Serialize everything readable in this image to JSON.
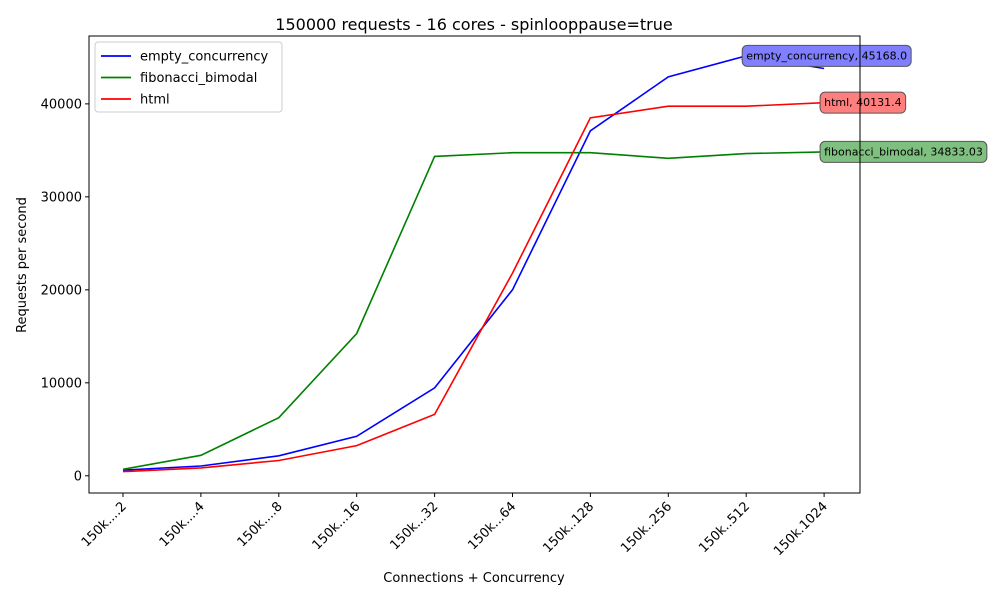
{
  "chart_data": {
    "type": "line",
    "title": "150000 requests - 16 cores - spinlooppause=true",
    "xlabel": "Connections + Concurrency",
    "ylabel": "Requests per second",
    "categories": [
      "150k....2",
      "150k....4",
      "150k....8",
      "150k...16",
      "150k...32",
      "150k...64",
      "150k..128",
      "150k..256",
      "150k..512",
      "150k.1024"
    ],
    "ylim": [
      -1850,
      47300
    ],
    "yticks": [
      0,
      10000,
      20000,
      30000,
      40000
    ],
    "grid": false,
    "legend_position": "top-left",
    "series": [
      {
        "name": "empty_concurrency",
        "color": "#0000ff",
        "values": [
          600,
          1050,
          2150,
          4250,
          9450,
          20000,
          37100,
          42900,
          45168.0,
          43800
        ],
        "annotation": {
          "index": 8,
          "text": "empty_concurrency, 45168.0",
          "box_color": "#7f7fff"
        }
      },
      {
        "name": "fibonacci_bimodal",
        "color": "#008000",
        "values": [
          700,
          2200,
          6250,
          15300,
          34350,
          34750,
          34750,
          34150,
          34650,
          34833.03
        ],
        "annotation": {
          "index": 9,
          "text": "fibonacci_bimodal, 34833.03",
          "box_color": "#7fbf7f"
        }
      },
      {
        "name": "html",
        "color": "#ff0000",
        "values": [
          450,
          850,
          1650,
          3250,
          6600,
          21800,
          38500,
          39750,
          39750,
          40131.4
        ],
        "annotation": {
          "index": 9,
          "text": "html, 40131.4",
          "box_color": "#ff7f7f"
        }
      }
    ]
  }
}
